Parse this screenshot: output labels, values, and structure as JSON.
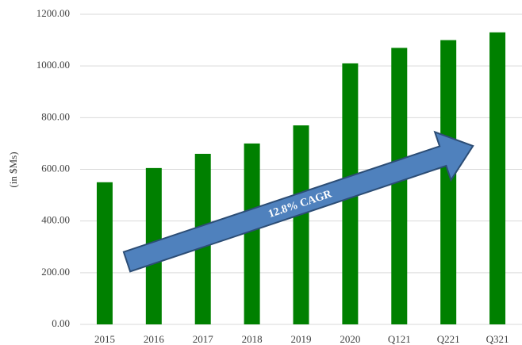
{
  "chart_data": {
    "type": "bar",
    "ylabel": "(in $Ms)",
    "annotation": "12.8% CAGR",
    "categories": [
      "2015",
      "2016",
      "2017",
      "2018",
      "2019",
      "2020",
      "Q121",
      "Q221",
      "Q321"
    ],
    "values": [
      550,
      605,
      660,
      700,
      770,
      1010,
      1070,
      1100,
      1130
    ],
    "color": "#008000",
    "ylim": [
      0,
      1200
    ],
    "yticks": [
      {
        "value": 0,
        "label": "0.00"
      },
      {
        "value": 200,
        "label": "200.00"
      },
      {
        "value": 400,
        "label": "400.00"
      },
      {
        "value": 600,
        "label": "600.00"
      },
      {
        "value": 800,
        "label": "800.00"
      },
      {
        "value": 1000,
        "label": "1000.00"
      },
      {
        "value": 1200,
        "label": "1200.00"
      }
    ],
    "grid": true
  }
}
